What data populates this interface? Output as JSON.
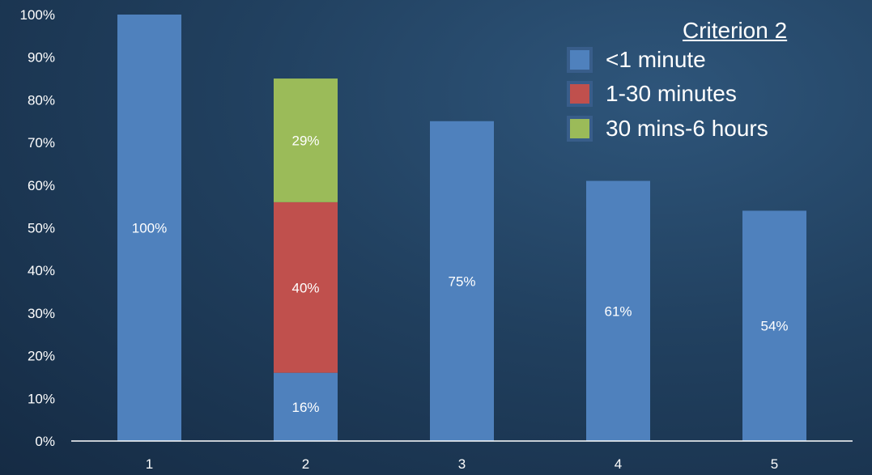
{
  "chart_data": {
    "type": "bar",
    "stacked": true,
    "categories": [
      "1",
      "2",
      "3",
      "4",
      "5"
    ],
    "series": [
      {
        "name": "<1 minute",
        "color": "#4f81bd",
        "values": [
          100,
          16,
          75,
          61,
          54
        ]
      },
      {
        "name": "1-30 minutes",
        "color": "#c0504d",
        "values": [
          0,
          40,
          0,
          0,
          0
        ]
      },
      {
        "name": "30 mins-6 hours",
        "color": "#9bbb59",
        "values": [
          0,
          29,
          0,
          0,
          0
        ]
      }
    ],
    "data_labels": [
      [
        "100%",
        "16%",
        "75%",
        "61%",
        "54%"
      ],
      [
        "",
        "40%",
        "",
        "",
        ""
      ],
      [
        "",
        "29%",
        "",
        "",
        ""
      ]
    ],
    "y_ticks": [
      "0%",
      "10%",
      "20%",
      "30%",
      "40%",
      "50%",
      "60%",
      "70%",
      "80%",
      "90%",
      "100%"
    ],
    "ylim": [
      0,
      100
    ],
    "grid": false,
    "legend_position": "top-right"
  },
  "legend": {
    "title": "Criterion 2"
  }
}
